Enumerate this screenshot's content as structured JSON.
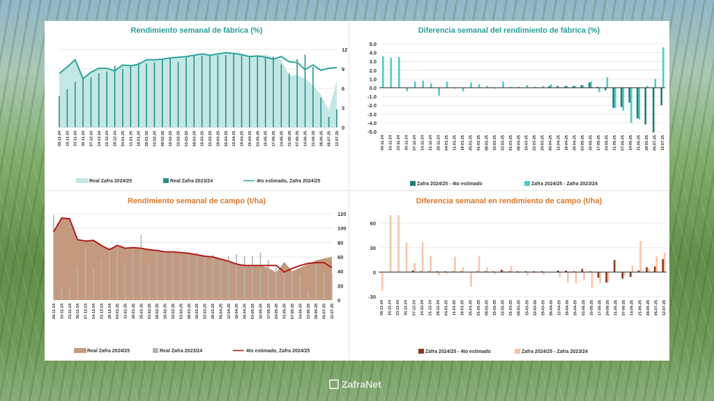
{
  "brand": {
    "logo_text": "ZafraNet"
  },
  "chart_data": [
    {
      "type": "bar+area+line",
      "title": "Rendimiento semanal de fábrica (%)",
      "title_color": "#2a9d98",
      "ylim": [
        0,
        12
      ],
      "yticks": [
        "0",
        "3",
        "6",
        "9",
        "12"
      ],
      "ytick_values": [
        0,
        3,
        6,
        9,
        12
      ],
      "yaxis_side": "right",
      "grid": true,
      "legend_placement": "bottom",
      "categories": [
        "09-11-24",
        "16-11-24",
        "23-11-24",
        "30-11-24",
        "07-12-24",
        "14-12-24",
        "21-12-24",
        "28-12-24",
        "04-01-25",
        "11-01-25",
        "18-01-25",
        "25-01-25",
        "01-02-25",
        "08-02-25",
        "15-02-25",
        "22-02-25",
        "01-03-25",
        "08-03-25",
        "15-03-25",
        "22-03-25",
        "29-03-25",
        "05-04-25",
        "12-04-25",
        "19-04-25",
        "26-04-25",
        "03-05-25",
        "10-05-25",
        "17-05-25",
        "24-05-25",
        "31-05-25",
        "07-06-25",
        "14-06-25",
        "21-06-25",
        "28-06-25",
        "05-07-25",
        "12-07-25"
      ],
      "series": [
        {
          "name": "Real Zafra 2024/25",
          "kind": "area",
          "color": "#c3e7e4",
          "values": [
            8.3,
            9.3,
            10.4,
            7.5,
            8.5,
            9.1,
            9.1,
            8.7,
            9.6,
            9.5,
            9.7,
            10.4,
            10.4,
            10.5,
            10.7,
            10.8,
            10.9,
            11.1,
            11.3,
            11.1,
            11.3,
            11.5,
            11.4,
            11.2,
            10.9,
            11.1,
            11.2,
            10.8,
            10.4,
            8.0,
            8.0,
            7.5,
            6.5,
            5.0,
            2.6,
            7.2
          ]
        },
        {
          "name": "Real Zafra 2023/24",
          "kind": "bar",
          "color": "#2a8f8a",
          "values": [
            4.8,
            5.9,
            7.0,
            7.5,
            7.7,
            8.3,
            8.6,
            9.5,
            9.0,
            9.5,
            10.0,
            9.8,
            10.0,
            10.4,
            10.6,
            10.1,
            10.8,
            11.0,
            11.0,
            11.0,
            11.1,
            11.1,
            11.3,
            11.1,
            10.9,
            11.0,
            10.7,
            10.9,
            9.7,
            8.3,
            10.5,
            11.2,
            9.3,
            4.6,
            1.6,
            2.8
          ]
        },
        {
          "name": "4to estimado, Zafra 2024/25",
          "kind": "line",
          "color": "#2aa39b",
          "values": [
            8.3,
            9.3,
            10.4,
            7.5,
            8.5,
            9.1,
            9.1,
            8.7,
            9.6,
            9.5,
            9.7,
            10.4,
            10.4,
            10.5,
            10.7,
            10.8,
            10.9,
            11.1,
            11.3,
            11.1,
            11.3,
            11.5,
            11.4,
            11.2,
            10.9,
            11.0,
            10.8,
            10.5,
            10.9,
            10.1,
            10.0,
            8.9,
            9.6,
            8.8,
            9.1,
            9.2
          ]
        }
      ]
    },
    {
      "type": "bar",
      "title": "Diferencia semanal del rendimiento de fábrica (%)",
      "title_color": "#2a9d98",
      "ylim": [
        -5,
        5
      ],
      "yticks": [
        "-5.0",
        "-4.0",
        "-3.0",
        "-2.0",
        "-1.0",
        "0.0",
        "1.0",
        "2.0",
        "3.0",
        "4.0",
        "5.0"
      ],
      "ytick_values": [
        -5,
        -4,
        -3,
        -2,
        -1,
        0,
        1,
        2,
        3,
        4,
        5
      ],
      "yaxis_side": "left",
      "grid": true,
      "legend_placement": "bottom",
      "categories": [
        "09-11-24",
        "16-11-24",
        "23-11-24",
        "30-11-24",
        "07-12-24",
        "14-12-24",
        "21-12-24",
        "28-12-24",
        "04-01-25",
        "11-01-25",
        "18-01-25",
        "25-01-25",
        "01-02-25",
        "08-02-25",
        "15-02-25",
        "22-02-25",
        "01-03-25",
        "08-03-25",
        "15-03-25",
        "22-03-25",
        "29-03-25",
        "05-04-25",
        "12-04-25",
        "19-04-25",
        "26-04-25",
        "03-05-25",
        "10-05-25",
        "17-05-25",
        "24-05-25",
        "31-05-25",
        "07-06-25",
        "14-06-25",
        "21-06-25",
        "28-06-25",
        "05-07-25",
        "12-07-25"
      ],
      "series": [
        {
          "name": "Zafra 2024/25 - 4to estimado",
          "kind": "bar",
          "color": "#1d7f78",
          "values": [
            0,
            0,
            0,
            0,
            0,
            0,
            0,
            0,
            0,
            0,
            0,
            0,
            0,
            0,
            0,
            0,
            0,
            0,
            0,
            0,
            0,
            0.2,
            0.2,
            0.2,
            0.2,
            0.3,
            0.6,
            0.1,
            -0.3,
            -2.3,
            -2.2,
            -1.7,
            -3.5,
            -4.2,
            -5.1,
            -2.0
          ]
        },
        {
          "name": "Zafra 2024/25 - Zafra 2023/24",
          "kind": "bar",
          "color": "#45d0c9",
          "values": [
            3.6,
            3.4,
            3.5,
            -0.4,
            0.7,
            0.8,
            0.5,
            -0.9,
            0.7,
            -0.1,
            -0.4,
            0.6,
            0.4,
            0.2,
            -0.1,
            0.7,
            0.1,
            0.1,
            0.3,
            0.1,
            0.2,
            0.4,
            0.1,
            0.2,
            0.2,
            0.3,
            0.7,
            -0.5,
            1.2,
            -2.3,
            -2.6,
            -4.0,
            -3.6,
            0.2,
            1.0,
            4.6
          ]
        }
      ]
    },
    {
      "type": "bar+area+line",
      "title": "Rendimiento semanal de campo (t/ha)",
      "title_color": "#d9772b",
      "ylim": [
        0,
        120
      ],
      "yticks": [
        "0",
        "20",
        "40",
        "60",
        "80",
        "100",
        "120"
      ],
      "ytick_values": [
        0,
        20,
        40,
        60,
        80,
        100,
        120
      ],
      "yaxis_side": "right",
      "grid": true,
      "legend_placement": "bottom",
      "categories": [
        "09-11-24",
        "16-11-24",
        "23-11-24",
        "30-11-24",
        "07-12-24",
        "14-12-24",
        "21-12-24",
        "28-12-24",
        "04-01-25",
        "11-01-25",
        "18-01-25",
        "25-01-25",
        "01-02-25",
        "08-02-25",
        "15-02-25",
        "22-02-25",
        "01-03-25",
        "08-03-25",
        "15-03-25",
        "22-03-25",
        "29-03-25",
        "05-04-25",
        "12-04-25",
        "19-04-25",
        "26-04-25",
        "03-05-25",
        "10-05-25",
        "17-05-25",
        "24-05-25",
        "31-05-25",
        "07-06-25",
        "14-06-25",
        "21-06-25",
        "28-06-25",
        "05-07-25",
        "12-07-25"
      ],
      "series": [
        {
          "name": "Real Zafra 2024/25",
          "kind": "area",
          "color": "#c49a7e",
          "values": [
            95,
            114,
            113,
            84,
            82,
            83,
            76,
            70,
            76,
            72,
            73,
            72,
            70,
            69,
            67,
            67,
            66,
            65,
            63,
            61,
            60,
            57,
            54,
            50,
            48,
            48,
            48,
            45,
            38,
            53,
            40,
            45,
            50,
            55,
            58,
            60
          ]
        },
        {
          "name": "Real Zafra 2023/24",
          "kind": "bar",
          "color": "#b3b3b3",
          "values": [
            118,
            18,
            18,
            47,
            73,
            45,
            57,
            73,
            74,
            52,
            68,
            90,
            50,
            65,
            66,
            67,
            59,
            64,
            66,
            60,
            63,
            55,
            61,
            64,
            61,
            61,
            66,
            56,
            45,
            38,
            40,
            35,
            13,
            50,
            39,
            37
          ]
        },
        {
          "name": "4to estimado, Zafra 2024/25",
          "kind": "line",
          "color": "#b01c1c",
          "values": [
            95,
            114,
            113,
            84,
            82,
            83,
            76,
            70,
            76,
            72,
            73,
            72,
            70,
            69,
            67,
            67,
            66,
            65,
            63,
            61,
            60,
            57,
            54,
            50,
            48,
            48,
            48,
            48,
            48,
            39,
            44,
            48,
            51,
            52,
            52,
            45
          ]
        }
      ]
    },
    {
      "type": "bar",
      "title": "Diferencia semanal en rendimiento de campo (t/ha)",
      "title_color": "#d9772b",
      "ylim": [
        -30,
        70
      ],
      "yticks": [
        "-30",
        "0",
        "30",
        "60"
      ],
      "ytick_values": [
        -30,
        0,
        30,
        60
      ],
      "yaxis_side": "left",
      "grid": true,
      "legend_placement": "bottom",
      "categories": [
        "09-11-24",
        "16-11-24",
        "23-11-24",
        "30-11-24",
        "07-12-24",
        "14-12-24",
        "21-12-24",
        "28-12-24",
        "04-01-25",
        "11-01-25",
        "18-01-25",
        "25-01-25",
        "01-02-25",
        "08-02-25",
        "15-02-25",
        "22-02-25",
        "01-03-25",
        "08-03-25",
        "15-03-25",
        "22-03-25",
        "29-03-25",
        "05-04-25",
        "12-04-25",
        "19-04-25",
        "26-04-25",
        "03-05-25",
        "10-05-25",
        "17-05-25",
        "24-05-25",
        "31-05-25",
        "07-06-25",
        "14-06-25",
        "21-06-25",
        "28-06-25",
        "05-07-25",
        "12-07-25"
      ],
      "series": [
        {
          "name": "Zafra 2024/25 - 4to estimado",
          "kind": "bar",
          "color": "#8a3a1e",
          "values": [
            0,
            0,
            0,
            0,
            2,
            1,
            1,
            1,
            1,
            1,
            1,
            0,
            1,
            1,
            1,
            3,
            1,
            1,
            1,
            1,
            1,
            0,
            2,
            2,
            1,
            4,
            1,
            -7,
            -13,
            15,
            -8,
            -6,
            2,
            6,
            7,
            16
          ]
        },
        {
          "name": "Zafra 2024/25 - Zafra 2023/24",
          "kind": "bar",
          "color": "#f8c4a8",
          "values": [
            -23,
            70,
            70,
            36,
            11,
            37,
            20,
            -4,
            -2,
            19,
            6,
            -18,
            20,
            6,
            -2,
            2,
            8,
            -1,
            -4,
            -1,
            -3,
            0,
            -6,
            -13,
            -14,
            -10,
            -20,
            -14,
            -12,
            0,
            -5,
            8,
            38,
            5,
            19,
            24
          ]
        }
      ]
    }
  ]
}
